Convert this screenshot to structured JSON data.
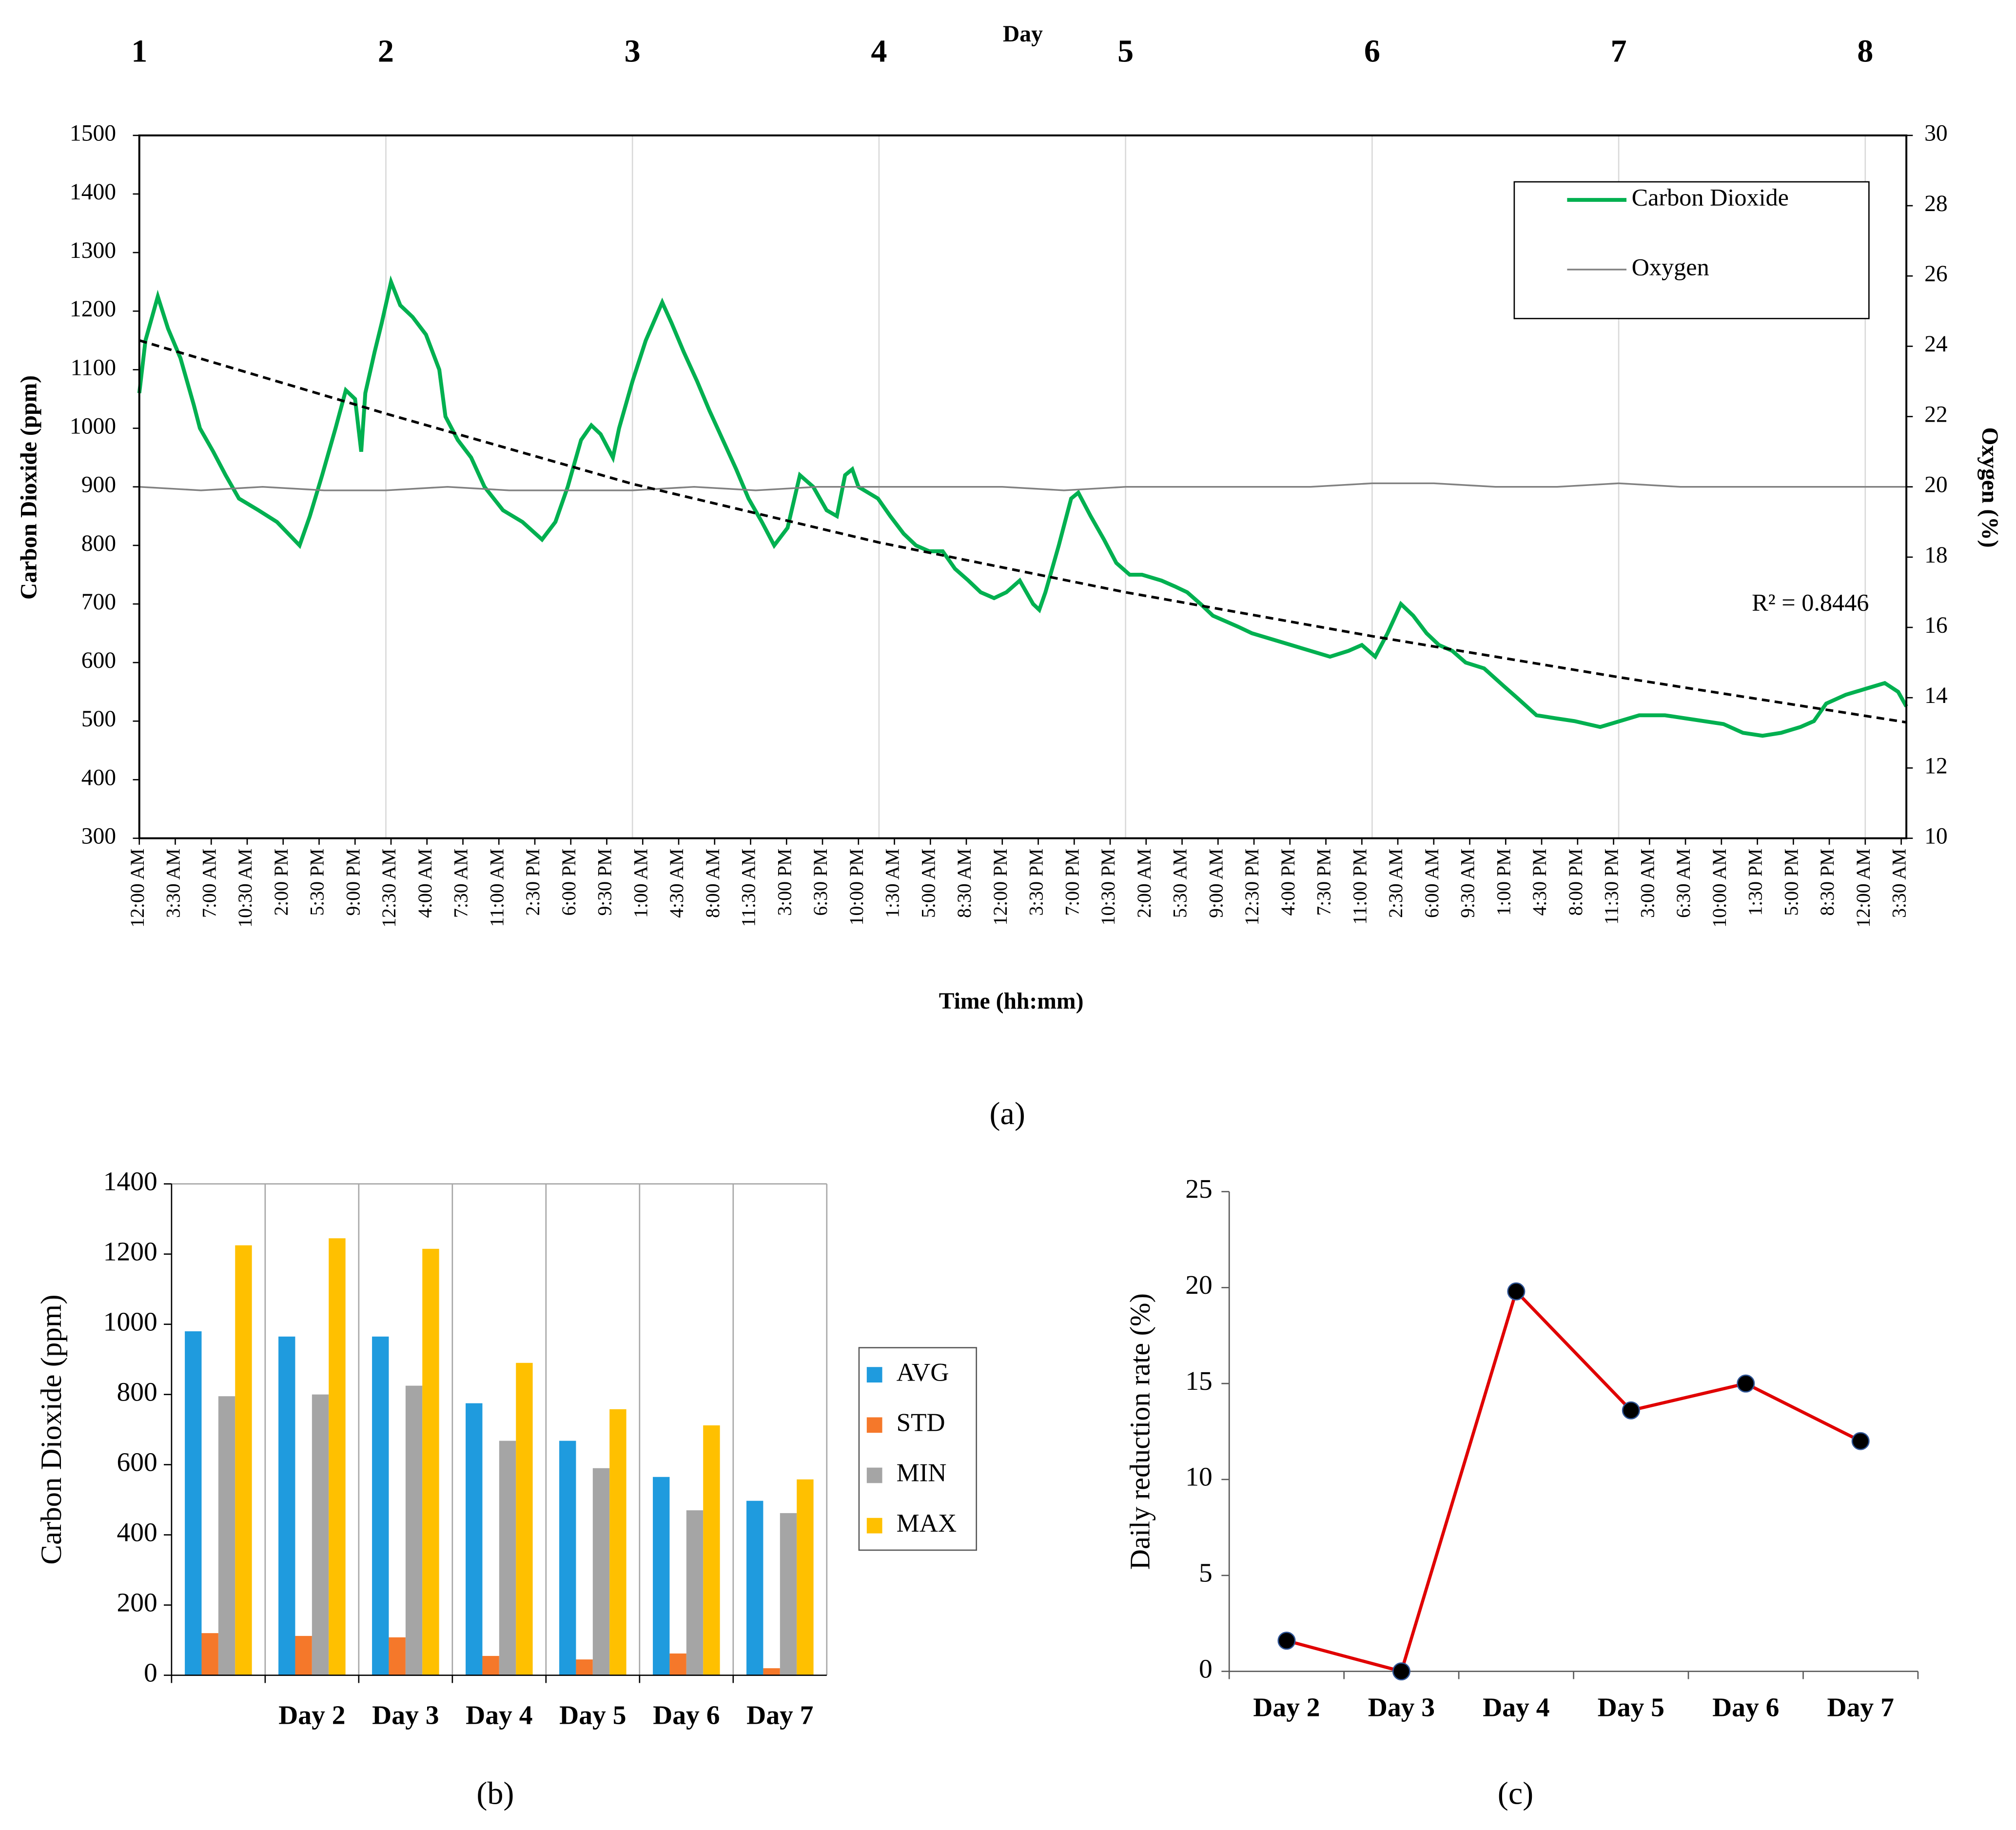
{
  "chart_data": [
    {
      "type": "line",
      "panel_label": "(a)",
      "x_label": "Time (hh:mm)",
      "x2_label": "Day",
      "y_label": "Carbon Dioxide (ppm)",
      "y2_label": "Oxygen  (%)",
      "xlim": [
        0,
        172
      ],
      "xticks": [
        {
          "value": 0,
          "label": "12:00 AM"
        },
        {
          "value": 3.5,
          "label": "3:30 AM"
        },
        {
          "value": 7,
          "label": "7:00 AM"
        },
        {
          "value": 10.5,
          "label": "10:30 AM"
        },
        {
          "value": 14,
          "label": "2:00 PM"
        },
        {
          "value": 17.5,
          "label": "5:30 PM"
        },
        {
          "value": 21,
          "label": "9:00 PM"
        },
        {
          "value": 24.5,
          "label": "12:30 AM"
        },
        {
          "value": 28,
          "label": "4:00 AM"
        },
        {
          "value": 31.5,
          "label": "7:30 AM"
        },
        {
          "value": 35,
          "label": "11:00 AM"
        },
        {
          "value": 38.5,
          "label": "2:30 PM"
        },
        {
          "value": 42,
          "label": "6:00 PM"
        },
        {
          "value": 45.5,
          "label": "9:30 PM"
        },
        {
          "value": 49,
          "label": "1:00 AM"
        },
        {
          "value": 52.5,
          "label": "4:30 AM"
        },
        {
          "value": 56,
          "label": "8:00 AM"
        },
        {
          "value": 59.5,
          "label": "11:30 AM"
        },
        {
          "value": 63,
          "label": "3:00 PM"
        },
        {
          "value": 66.5,
          "label": "6:30 PM"
        },
        {
          "value": 70,
          "label": "10:00 PM"
        },
        {
          "value": 73.5,
          "label": "1:30 AM"
        },
        {
          "value": 77,
          "label": "5:00 AM"
        },
        {
          "value": 80.5,
          "label": "8:30 AM"
        },
        {
          "value": 84,
          "label": "12:00 PM"
        },
        {
          "value": 87.5,
          "label": "3:30 PM"
        },
        {
          "value": 91,
          "label": "7:00 PM"
        },
        {
          "value": 94.5,
          "label": "10:30 PM"
        },
        {
          "value": 98,
          "label": "2:00 AM"
        },
        {
          "value": 101.5,
          "label": "5:30 AM"
        },
        {
          "value": 105,
          "label": "9:00 AM"
        },
        {
          "value": 108.5,
          "label": "12:30 PM"
        },
        {
          "value": 112,
          "label": "4:00 PM"
        },
        {
          "value": 115.5,
          "label": "7:30 PM"
        },
        {
          "value": 119,
          "label": "11:00 PM"
        },
        {
          "value": 122.5,
          "label": "2:30 AM"
        },
        {
          "value": 126,
          "label": "6:00 AM"
        },
        {
          "value": 129.5,
          "label": "9:30 AM"
        },
        {
          "value": 133,
          "label": "1:00 PM"
        },
        {
          "value": 136.5,
          "label": "4:30 PM"
        },
        {
          "value": 140,
          "label": "8:00 PM"
        },
        {
          "value": 143.5,
          "label": "11:30 PM"
        },
        {
          "value": 147,
          "label": "3:00 AM"
        },
        {
          "value": 150.5,
          "label": "6:30 AM"
        },
        {
          "value": 154,
          "label": "10:00 AM"
        },
        {
          "value": 157.5,
          "label": "1:30 PM"
        },
        {
          "value": 161,
          "label": "5:00 PM"
        },
        {
          "value": 164.5,
          "label": "8:30 PM"
        },
        {
          "value": 168,
          "label": "12:00 AM"
        },
        {
          "value": 171.5,
          "label": "3:30 AM"
        }
      ],
      "x2lim": [
        1,
        8.1667
      ],
      "x2ticks": [
        1,
        2,
        3,
        4,
        5,
        6,
        7,
        8
      ],
      "ylim": [
        300,
        1500
      ],
      "yticks": [
        300,
        400,
        500,
        600,
        700,
        800,
        900,
        1000,
        1100,
        1200,
        1300,
        1400,
        1500
      ],
      "y2lim": [
        10,
        30
      ],
      "y2ticks": [
        10,
        12,
        14,
        16,
        18,
        20,
        22,
        24,
        26,
        28,
        30
      ],
      "grid": true,
      "legend": "upper right",
      "series": [
        {
          "name": "Carbon Dioxide",
          "color": "#00b050",
          "x": [
            0,
            0.6,
            1.8,
            2.8,
            4.0,
            5.3,
            5.9,
            7.2,
            8.4,
            9.7,
            11.6,
            13.4,
            15.6,
            16.6,
            17.8,
            19.1,
            20.1,
            21.0,
            21.6,
            22.0,
            22.9,
            23.6,
            24.5,
            25.4,
            26.6,
            27.9,
            29.2,
            29.8,
            31.0,
            32.3,
            33.6,
            35.4,
            37.3,
            39.2,
            40.5,
            41.7,
            43.0,
            44.0,
            44.9,
            46.1,
            46.7,
            48.0,
            49.3,
            50.9,
            51.8,
            53.0,
            54.3,
            55.5,
            56.8,
            58.1,
            59.3,
            60.6,
            61.8,
            63.1,
            64.3,
            65.6,
            66.9,
            67.9,
            68.7,
            69.4,
            70.0,
            71.9,
            73.1,
            74.4,
            75.6,
            76.9,
            78.2,
            79.4,
            80.7,
            81.9,
            83.2,
            84.4,
            85.7,
            87.0,
            87.6,
            88.2,
            89.5,
            90.7,
            91.4,
            92.6,
            93.9,
            95.1,
            96.4,
            97.6,
            99.5,
            100.8,
            102.0,
            103.3,
            104.5,
            105.8,
            107.1,
            108.3,
            110.2,
            112.1,
            114.0,
            115.9,
            117.7,
            119.0,
            120.3,
            121.5,
            122.8,
            124.0,
            125.3,
            126.5,
            127.8,
            129.1,
            130.9,
            132.8,
            134.1,
            136.0,
            137.8,
            139.7,
            142.2,
            144.1,
            146.0,
            148.5,
            150.4,
            152.3,
            154.2,
            156.1,
            158.0,
            159.8,
            161.7,
            163.0,
            164.2,
            166.1,
            168.0,
            169.9,
            171.2,
            172
          ],
          "values": [
            1060,
            1150,
            1225,
            1170,
            1120,
            1040,
            1000,
            960,
            920,
            880,
            860,
            840,
            800,
            850,
            920,
            1000,
            1065,
            1050,
            960,
            1060,
            1130,
            1180,
            1250,
            1210,
            1190,
            1160,
            1100,
            1020,
            980,
            950,
            900,
            860,
            840,
            810,
            840,
            900,
            980,
            1005,
            990,
            950,
            1000,
            1080,
            1150,
            1215,
            1180,
            1130,
            1080,
            1030,
            980,
            930,
            880,
            840,
            800,
            830,
            920,
            900,
            860,
            850,
            920,
            930,
            900,
            880,
            850,
            820,
            800,
            790,
            790,
            760,
            740,
            720,
            710,
            720,
            740,
            700,
            690,
            720,
            800,
            880,
            890,
            850,
            810,
            770,
            750,
            750,
            740,
            730,
            720,
            700,
            680,
            670,
            660,
            650,
            640,
            630,
            620,
            610,
            620,
            630,
            610,
            650,
            700,
            680,
            650,
            630,
            620,
            600,
            590,
            560,
            540,
            510,
            505,
            500,
            490,
            500,
            510,
            510,
            505,
            500,
            495,
            480,
            475,
            480,
            490,
            500,
            530,
            545,
            555,
            565,
            550,
            525
          ]
        },
        {
          "name": "Oxygen",
          "color": "#808080",
          "axis": "y2",
          "x": [
            0,
            6,
            12,
            18,
            24,
            30,
            36,
            42,
            48,
            54,
            60,
            66,
            72,
            78,
            84,
            90,
            96,
            102,
            108,
            114,
            120,
            126,
            132,
            138,
            144,
            150,
            156,
            162,
            168,
            172
          ],
          "values": [
            20.0,
            19.9,
            20.0,
            19.9,
            19.9,
            20.0,
            19.9,
            19.9,
            19.9,
            20.0,
            19.9,
            20.0,
            20.0,
            20.0,
            20.0,
            19.9,
            20.0,
            20.0,
            20.0,
            20.0,
            20.1,
            20.1,
            20.0,
            20.0,
            20.1,
            20.0,
            20.0,
            20.0,
            20.0,
            20.0
          ]
        }
      ],
      "trendline": {
        "color": "#000000",
        "x": [
          0,
          24,
          48,
          72,
          96,
          120,
          144,
          168,
          172
        ],
        "values": [
          1150,
          1025,
          905,
          805,
          720,
          645,
          575,
          509,
          498
        ]
      },
      "annotations": [
        "R² = 0.8446"
      ]
    },
    {
      "type": "bar",
      "panel_label": "(b)",
      "y_label": "Carbon Dioxide (ppm)",
      "categories": [
        null,
        "Day 2",
        "Day 3",
        "Day 4",
        "Day 5",
        "Day 6",
        "Day 7"
      ],
      "ylim": [
        0,
        1400
      ],
      "yticks": [
        0,
        200,
        400,
        600,
        800,
        1000,
        1200,
        1400
      ],
      "grid": true,
      "legend": "right",
      "series": [
        {
          "name": "AVG",
          "color": "#1f9bde",
          "values": [
            980,
            965,
            965,
            775,
            668,
            565,
            497
          ]
        },
        {
          "name": "STD",
          "color": "#f5782a",
          "values": [
            120,
            112,
            108,
            55,
            45,
            62,
            20
          ]
        },
        {
          "name": "MIN",
          "color": "#a5a5a5",
          "values": [
            795,
            800,
            825,
            668,
            590,
            470,
            462
          ]
        },
        {
          "name": "MAX",
          "color": "#ffc000",
          "values": [
            1225,
            1245,
            1215,
            890,
            758,
            712,
            558
          ]
        }
      ]
    },
    {
      "type": "line",
      "panel_label": "(c)",
      "y_label": "Daily  reduction rate (%)",
      "categories": [
        "Day 2",
        "Day 3",
        "Day 4",
        "Day 5",
        "Day 6",
        "Day 7"
      ],
      "values": [
        1.6,
        0,
        19.8,
        13.6,
        15.0,
        12.0
      ],
      "color": "#e00000",
      "marker_color": "#000000",
      "ylim": [
        0,
        25
      ],
      "yticks": [
        0,
        5,
        10,
        15,
        20,
        25
      ]
    }
  ]
}
